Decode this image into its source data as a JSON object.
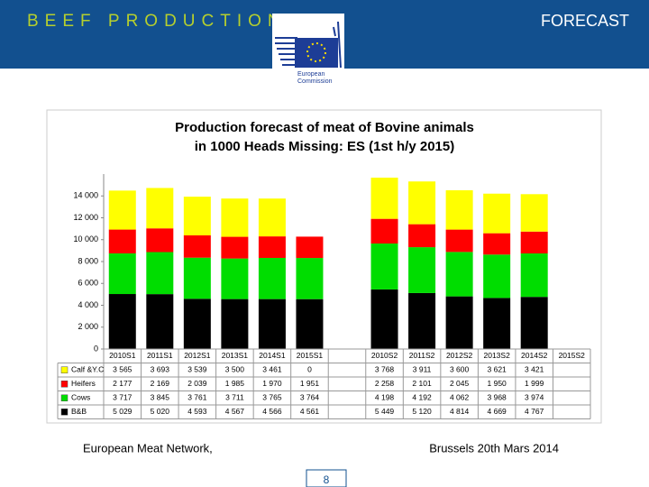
{
  "header": {
    "title": "BEEF PRODUCTION",
    "right": "FORECAST",
    "logo": [
      "European",
      "Commission"
    ]
  },
  "chart_data": {
    "type": "bar",
    "stacked": true,
    "title": [
      "Production forecast of meat of Bovine animals",
      "in 1000 Heads  Missing: ES (1st h/y 2015)"
    ],
    "categories": [
      "2010S1",
      "2011S1",
      "2012S1",
      "2013S1",
      "2014S1",
      "2015S1",
      null,
      "2010S2",
      "2011S2",
      "2012S2",
      "2013S2",
      "2014S2",
      "2015S2"
    ],
    "ylim": [
      0,
      16000
    ],
    "yticks": [
      0,
      {
        "value": 2000,
        "label": "2 000"
      },
      {
        "value": 4000,
        "label": "4 000"
      },
      {
        "value": 6000,
        "label": "6 000"
      },
      {
        "value": 8000,
        "label": "8 000"
      },
      {
        "value": 10000,
        "label": "10 000"
      },
      {
        "value": 12000,
        "label": "12 000"
      },
      {
        "value": 14000,
        "label": "14 000"
      }
    ],
    "series": [
      {
        "name": "Calf &Y.C",
        "color": "#ffff00",
        "values": [
          3565,
          3693,
          3539,
          3500,
          3461,
          0,
          null,
          3768,
          3911,
          3600,
          3621,
          3421,
          null
        ],
        "value_labels": [
          "3 565",
          "3 693",
          "3 539",
          "3 500",
          "3 461",
          "0",
          null,
          "3 768",
          "3 911",
          "3 600",
          "3 621",
          "3 421",
          null
        ]
      },
      {
        "name": "Heifers",
        "color": "#ff0000",
        "values": [
          2177,
          2169,
          2039,
          1985,
          1970,
          1951,
          null,
          2258,
          2101,
          2045,
          1950,
          1999,
          null
        ],
        "value_labels": [
          "2 177",
          "2 169",
          "2 039",
          "1 985",
          "1 970",
          "1 951",
          null,
          "2 258",
          "2 101",
          "2 045",
          "1 950",
          "1 999",
          null
        ]
      },
      {
        "name": "Cows",
        "color": "#00dd00",
        "values": [
          3717,
          3845,
          3761,
          3711,
          3765,
          3764,
          null,
          4198,
          4192,
          4062,
          3968,
          3974,
          null
        ],
        "value_labels": [
          "3 717",
          "3 845",
          "3 761",
          "3 711",
          "3 765",
          "3 764",
          null,
          "4 198",
          "4 192",
          "4 062",
          "3 968",
          "3 974",
          null
        ]
      },
      {
        "name": "B&B",
        "color": "#000000",
        "values": [
          5029,
          5020,
          4593,
          4567,
          4566,
          4561,
          null,
          5449,
          5120,
          4814,
          4669,
          4767,
          null
        ],
        "value_labels": [
          "5 029",
          "5 020",
          "4 593",
          "4 567",
          "4 566",
          "4 561",
          null,
          "5 449",
          "5 120",
          "4 814",
          "4 669",
          "4 767",
          null
        ]
      }
    ]
  },
  "footer": {
    "left": "European Meat Network,",
    "right": "Brussels 20th Mars 2014",
    "page": 8
  }
}
